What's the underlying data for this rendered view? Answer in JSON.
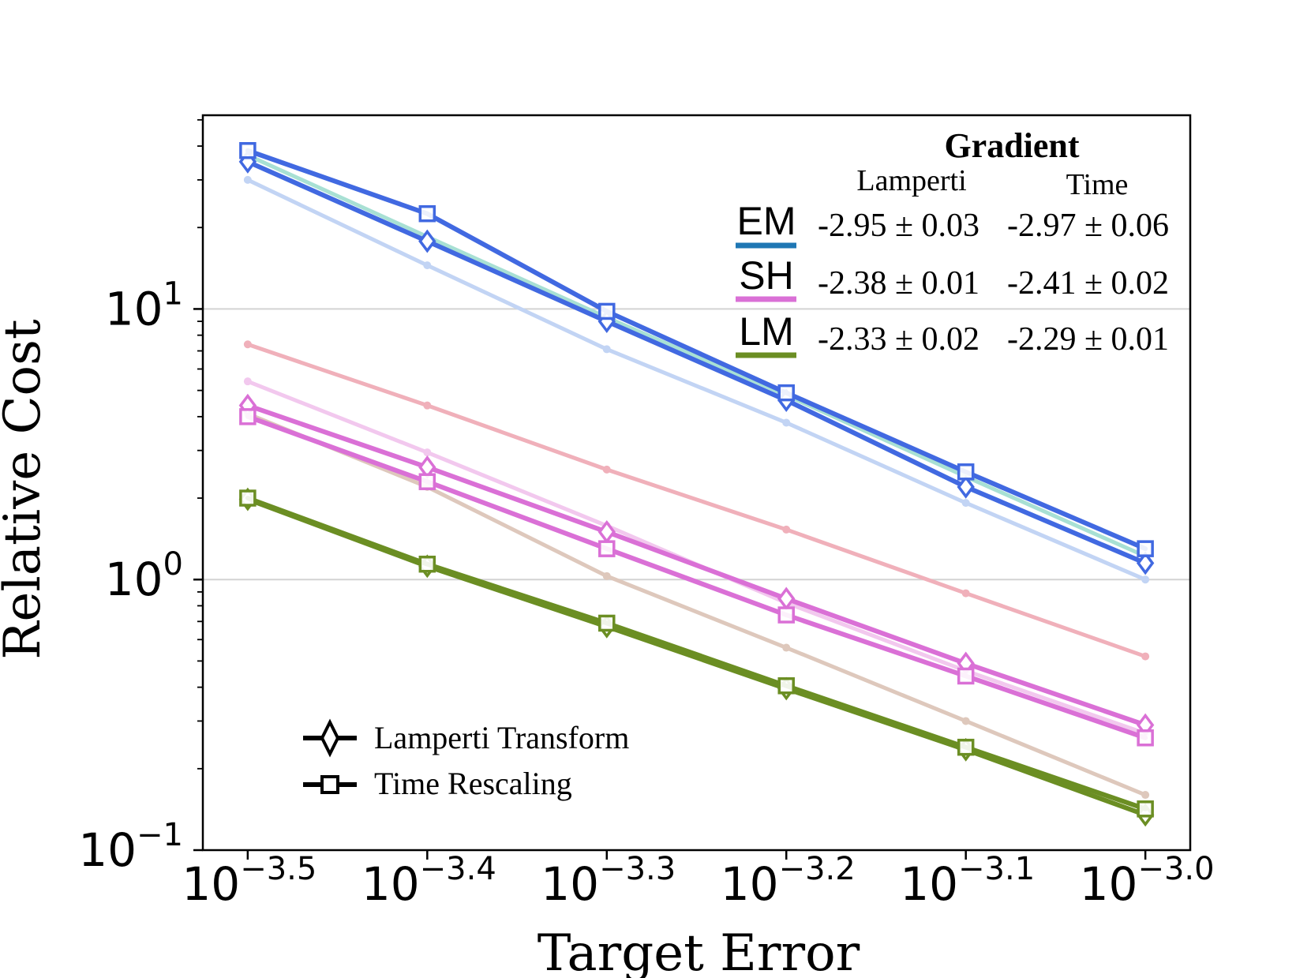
{
  "chart_data": {
    "type": "line",
    "xlabel": "Target Error",
    "ylabel": "Relative Cost",
    "x_scale": "log10",
    "y_scale": "log10",
    "x": [
      -3.5,
      -3.4,
      -3.3,
      -3.2,
      -3.1,
      -3.0
    ],
    "xticks": [
      {
        "base": "10",
        "exp": "−3.5"
      },
      {
        "base": "10",
        "exp": "−3.4"
      },
      {
        "base": "10",
        "exp": "−3.3"
      },
      {
        "base": "10",
        "exp": "−3.2"
      },
      {
        "base": "10",
        "exp": "−3.1"
      },
      {
        "base": "10",
        "exp": "−3.0"
      }
    ],
    "yticks": [
      {
        "value": 0.1,
        "base": "10",
        "exp": "−1"
      },
      {
        "value": 1,
        "base": "10",
        "exp": "0"
      },
      {
        "value": 10,
        "base": "10",
        "exp": "1"
      }
    ],
    "ylim": [
      0.1,
      52
    ],
    "xlim": [
      -3.525,
      -2.975
    ],
    "series": [
      {
        "name": "EM faint",
        "color": "#a8e0d4",
        "marker": "none",
        "faint": true,
        "values": [
          37.0,
          18.5,
          9.3,
          4.8,
          2.4,
          1.22
        ]
      },
      {
        "name": "EM reference",
        "color": "#c2d4f4",
        "marker": "dot",
        "faint": true,
        "values": [
          30.0,
          14.5,
          7.1,
          3.8,
          1.92,
          1.0
        ]
      },
      {
        "name": "Reference red",
        "color": "#f0b0ba",
        "marker": "dot",
        "faint": true,
        "values": [
          7.4,
          4.4,
          2.55,
          1.53,
          0.89,
          0.52
        ]
      },
      {
        "name": "Reference pink",
        "color": "#f2c8ee",
        "marker": "dot",
        "faint": true,
        "values": [
          5.4,
          2.95,
          1.58,
          0.82,
          0.46,
          0.27
        ]
      },
      {
        "name": "Reference brown",
        "color": "#dec8bc",
        "marker": "dot",
        "faint": true,
        "values": [
          4.1,
          2.2,
          1.03,
          0.56,
          0.3,
          0.16
        ]
      },
      {
        "name": "EM Lamperti Transform",
        "color": "#4169e1",
        "marker": "diamond",
        "values": [
          35.0,
          17.8,
          9.0,
          4.6,
          2.2,
          1.15
        ]
      },
      {
        "name": "EM Time Rescaling",
        "color": "#4169e1",
        "marker": "square",
        "values": [
          38.5,
          22.5,
          9.8,
          4.9,
          2.5,
          1.3
        ]
      },
      {
        "name": "SH Lamperti Transform",
        "color": "#da70d6",
        "marker": "diamond",
        "values": [
          4.4,
          2.6,
          1.5,
          0.85,
          0.49,
          0.29
        ]
      },
      {
        "name": "SH Time Rescaling",
        "color": "#da70d6",
        "marker": "square",
        "values": [
          4.0,
          2.3,
          1.3,
          0.74,
          0.44,
          0.26
        ]
      },
      {
        "name": "LM Lamperti Transform",
        "color": "#6b8e23",
        "marker": "diamond",
        "values": [
          1.98,
          1.12,
          0.67,
          0.395,
          0.235,
          0.135
        ]
      },
      {
        "name": "LM Time Rescaling",
        "color": "#6b8e23",
        "marker": "square",
        "values": [
          2.0,
          1.14,
          0.69,
          0.405,
          0.24,
          0.142
        ]
      }
    ],
    "gradient_table": {
      "title": "Gradient",
      "col_headers": [
        "Lamperti",
        "Time"
      ],
      "rows": [
        {
          "label": "EM",
          "color": "#1f77b4",
          "lamperti": "-2.95 ± 0.03",
          "time": "-2.97 ± 0.06"
        },
        {
          "label": "SH",
          "color": "#da70d6",
          "lamperti": "-2.38 ± 0.01",
          "time": "-2.41 ± 0.02"
        },
        {
          "label": "LM",
          "color": "#6b8e23",
          "lamperti": "-2.33 ± 0.02",
          "time": "-2.29 ± 0.01"
        }
      ]
    },
    "legend": {
      "placement": "lower-left",
      "entries": [
        {
          "label": "Lamperti Transform",
          "marker": "diamond"
        },
        {
          "label": "Time Rescaling",
          "marker": "square"
        }
      ]
    },
    "grid": "horizontal-major"
  }
}
